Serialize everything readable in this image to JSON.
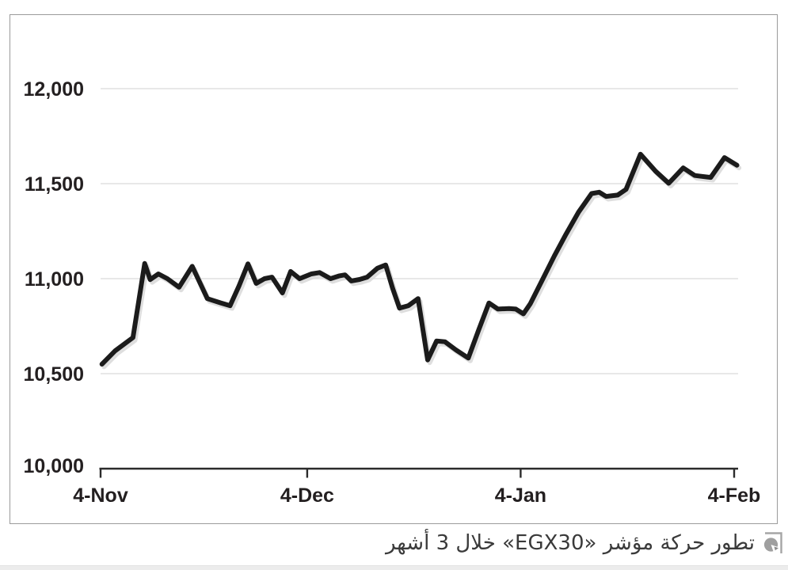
{
  "caption": {
    "text": "تطور حركة مؤشر «EGX30» خلال 3 أشهر",
    "icon": "infographic-chart-icon"
  },
  "chart_data": {
    "type": "line",
    "title": "",
    "xlabel": "",
    "ylabel": "",
    "x_axis_kind": "dates",
    "x_range_days": [
      0,
      92
    ],
    "ylim": [
      10000,
      12000
    ],
    "grid": "horizontal-light",
    "legend": "none",
    "line_color": "#1b1b1b",
    "line_shadow_color": "#d8d8d8",
    "gridline_color": "#d9d9d9",
    "axis_color": "#2b2b2b",
    "label_color": "#231f20",
    "x_ticks": [
      {
        "day": 0,
        "label": "4-Nov"
      },
      {
        "day": 30,
        "label": "4-Dec"
      },
      {
        "day": 61,
        "label": "4-Jan"
      },
      {
        "day": 92,
        "label": "4-Feb"
      }
    ],
    "y_ticks": [
      {
        "value": 10000,
        "label": "10,000"
      },
      {
        "value": 10500,
        "label": "10,500"
      },
      {
        "value": 11000,
        "label": "11,000"
      },
      {
        "value": 11500,
        "label": "11,500"
      },
      {
        "value": 12000,
        "label": "12,000"
      }
    ],
    "series": [
      {
        "name": "EGX30",
        "unit": "index points",
        "points": [
          [
            0.2,
            10550
          ],
          [
            2.1,
            10620
          ],
          [
            4.7,
            10690
          ],
          [
            6.4,
            11080
          ],
          [
            7.2,
            10995
          ],
          [
            8.4,
            11025
          ],
          [
            9.7,
            11000
          ],
          [
            11.4,
            10955
          ],
          [
            13.3,
            11065
          ],
          [
            15.5,
            10895
          ],
          [
            17.4,
            10873
          ],
          [
            18.8,
            10858
          ],
          [
            20.1,
            10962
          ],
          [
            21.4,
            11078
          ],
          [
            22.6,
            10975
          ],
          [
            23.8,
            11000
          ],
          [
            24.9,
            11008
          ],
          [
            26.4,
            10925
          ],
          [
            27.6,
            11038
          ],
          [
            28.9,
            11000
          ],
          [
            30.6,
            11025
          ],
          [
            31.8,
            11032
          ],
          [
            33.4,
            11000
          ],
          [
            34.6,
            11014
          ],
          [
            35.5,
            11020
          ],
          [
            36.4,
            10988
          ],
          [
            37.6,
            10996
          ],
          [
            38.7,
            11008
          ],
          [
            40.2,
            11055
          ],
          [
            41.4,
            11072
          ],
          [
            42.4,
            10950
          ],
          [
            43.4,
            10845
          ],
          [
            44.7,
            10858
          ],
          [
            46.1,
            10895
          ],
          [
            47.5,
            10572
          ],
          [
            48.8,
            10672
          ],
          [
            50.0,
            10668
          ],
          [
            51.6,
            10625
          ],
          [
            53.4,
            10582
          ],
          [
            54.9,
            10730
          ],
          [
            56.4,
            10872
          ],
          [
            57.7,
            10840
          ],
          [
            59.3,
            10843
          ],
          [
            60.3,
            10840
          ],
          [
            61.4,
            10815
          ],
          [
            62.4,
            10868
          ],
          [
            64.1,
            10990
          ],
          [
            65.9,
            11120
          ],
          [
            67.6,
            11235
          ],
          [
            69.4,
            11350
          ],
          [
            71.3,
            11448
          ],
          [
            72.4,
            11455
          ],
          [
            73.4,
            11433
          ],
          [
            75.1,
            11440
          ],
          [
            76.3,
            11470
          ],
          [
            78.4,
            11655
          ],
          [
            80.6,
            11565
          ],
          [
            82.5,
            11502
          ],
          [
            84.6,
            11583
          ],
          [
            86.3,
            11543
          ],
          [
            88.6,
            11533
          ],
          [
            90.6,
            11637
          ],
          [
            92.4,
            11597
          ]
        ]
      }
    ]
  }
}
